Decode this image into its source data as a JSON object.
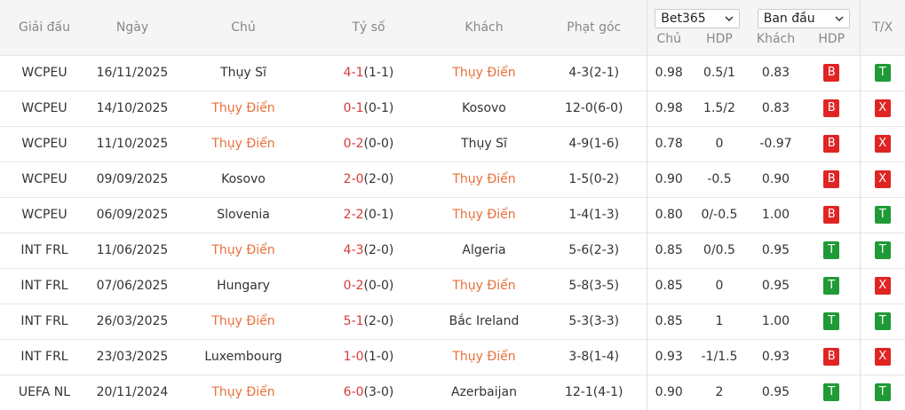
{
  "header": {
    "columns": [
      "Giải đấu",
      "Ngày",
      "Chủ",
      "Tỷ số",
      "Khách",
      "Phạt góc"
    ],
    "bookmaker": "Bet365",
    "odds_type": "Ban đầu",
    "sub_columns": [
      "Chủ",
      "HDP",
      "Khách",
      "HDP"
    ],
    "tx": "T/X"
  },
  "colors": {
    "highlight": "#e8703a",
    "score": "#d83a3a",
    "text": "#333333"
  },
  "rows": [
    {
      "league": "WCPEU",
      "date": "16/11/2025",
      "home": "Thụy Sĩ",
      "score": "4-1",
      "half": "(1-1)",
      "away": "Thụy Điển",
      "highlight": "away",
      "corners": "4-3(2-1)",
      "odds_home": "0.98",
      "hdp": "0.5/1",
      "odds_away": "0.83",
      "hdp_result": {
        "label": "B",
        "color": "#e02424"
      },
      "tx_result": {
        "label": "T",
        "color": "#1f9a36"
      }
    },
    {
      "league": "WCPEU",
      "date": "14/10/2025",
      "home": "Thụy Điển",
      "score": "0-1",
      "half": "(0-1)",
      "away": "Kosovo",
      "highlight": "home",
      "corners": "12-0(6-0)",
      "odds_home": "0.98",
      "hdp": "1.5/2",
      "odds_away": "0.83",
      "hdp_result": {
        "label": "B",
        "color": "#e02424"
      },
      "tx_result": {
        "label": "X",
        "color": "#e02424"
      }
    },
    {
      "league": "WCPEU",
      "date": "11/10/2025",
      "home": "Thụy Điển",
      "score": "0-2",
      "half": "(0-0)",
      "away": "Thụy Sĩ",
      "highlight": "home",
      "corners": "4-9(1-6)",
      "odds_home": "0.78",
      "hdp": "0",
      "odds_away": "-0.97",
      "hdp_result": {
        "label": "B",
        "color": "#e02424"
      },
      "tx_result": {
        "label": "X",
        "color": "#e02424"
      }
    },
    {
      "league": "WCPEU",
      "date": "09/09/2025",
      "home": "Kosovo",
      "score": "2-0",
      "half": "(2-0)",
      "away": "Thụy Điển",
      "highlight": "away",
      "corners": "1-5(0-2)",
      "odds_home": "0.90",
      "hdp": "-0.5",
      "odds_away": "0.90",
      "hdp_result": {
        "label": "B",
        "color": "#e02424"
      },
      "tx_result": {
        "label": "X",
        "color": "#e02424"
      }
    },
    {
      "league": "WCPEU",
      "date": "06/09/2025",
      "home": "Slovenia",
      "score": "2-2",
      "half": "(0-1)",
      "away": "Thụy Điển",
      "highlight": "away",
      "corners": "1-4(1-3)",
      "odds_home": "0.80",
      "hdp": "0/-0.5",
      "odds_away": "1.00",
      "hdp_result": {
        "label": "B",
        "color": "#e02424"
      },
      "tx_result": {
        "label": "T",
        "color": "#1f9a36"
      }
    },
    {
      "league": "INT FRL",
      "date": "11/06/2025",
      "home": "Thụy Điển",
      "score": "4-3",
      "half": "(2-0)",
      "away": "Algeria",
      "highlight": "home",
      "corners": "5-6(2-3)",
      "odds_home": "0.85",
      "hdp": "0/0.5",
      "odds_away": "0.95",
      "hdp_result": {
        "label": "T",
        "color": "#1f9a36"
      },
      "tx_result": {
        "label": "T",
        "color": "#1f9a36"
      }
    },
    {
      "league": "INT FRL",
      "date": "07/06/2025",
      "home": "Hungary",
      "score": "0-2",
      "half": "(0-0)",
      "away": "Thụy Điển",
      "highlight": "away",
      "corners": "5-8(3-5)",
      "odds_home": "0.85",
      "hdp": "0",
      "odds_away": "0.95",
      "hdp_result": {
        "label": "T",
        "color": "#1f9a36"
      },
      "tx_result": {
        "label": "X",
        "color": "#e02424"
      }
    },
    {
      "league": "INT FRL",
      "date": "26/03/2025",
      "home": "Thụy Điển",
      "score": "5-1",
      "half": "(2-0)",
      "away": "Bắc Ireland",
      "highlight": "home",
      "corners": "5-3(3-3)",
      "odds_home": "0.85",
      "hdp": "1",
      "odds_away": "1.00",
      "hdp_result": {
        "label": "T",
        "color": "#1f9a36"
      },
      "tx_result": {
        "label": "T",
        "color": "#1f9a36"
      }
    },
    {
      "league": "INT FRL",
      "date": "23/03/2025",
      "home": "Luxembourg",
      "score": "1-0",
      "half": "(1-0)",
      "away": "Thụy Điển",
      "highlight": "away",
      "corners": "3-8(1-4)",
      "odds_home": "0.93",
      "hdp": "-1/1.5",
      "odds_away": "0.93",
      "hdp_result": {
        "label": "B",
        "color": "#e02424"
      },
      "tx_result": {
        "label": "X",
        "color": "#e02424"
      }
    },
    {
      "league": "UEFA NL",
      "date": "20/11/2024",
      "home": "Thụy Điển",
      "score": "6-0",
      "half": "(3-0)",
      "away": "Azerbaijan",
      "highlight": "home",
      "corners": "12-1(4-1)",
      "odds_home": "0.90",
      "hdp": "2",
      "odds_away": "0.95",
      "hdp_result": {
        "label": "T",
        "color": "#1f9a36"
      },
      "tx_result": {
        "label": "T",
        "color": "#1f9a36"
      }
    }
  ]
}
